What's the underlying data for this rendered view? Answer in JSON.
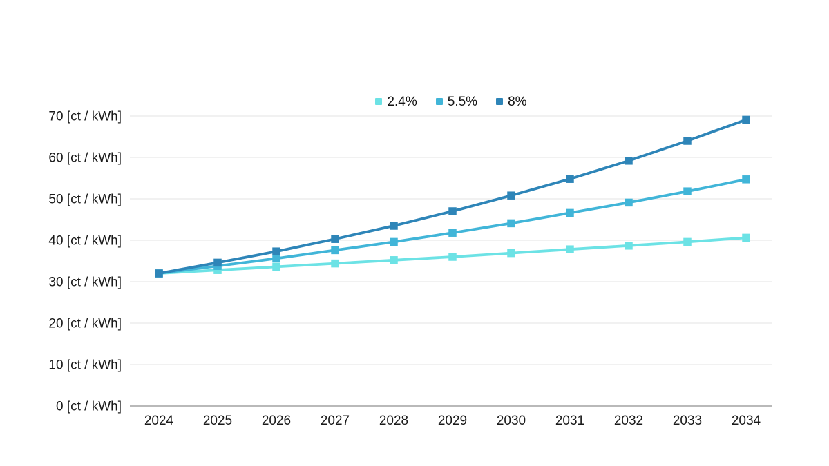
{
  "chart_data": {
    "type": "line",
    "title": "",
    "x": [
      2024,
      2025,
      2026,
      2027,
      2028,
      2029,
      2030,
      2031,
      2032,
      2033,
      2034
    ],
    "series": [
      {
        "name": "2.4%",
        "color": "#6ce2e5",
        "values": [
          32.0,
          32.8,
          33.6,
          34.4,
          35.2,
          36.0,
          36.9,
          37.8,
          38.7,
          39.6,
          40.6
        ]
      },
      {
        "name": "5.5%",
        "color": "#41b5d8",
        "values": [
          32.0,
          33.8,
          35.6,
          37.6,
          39.6,
          41.8,
          44.1,
          46.6,
          49.1,
          51.8,
          54.7
        ]
      },
      {
        "name": "8%",
        "color": "#2e85b8",
        "values": [
          32.0,
          34.6,
          37.3,
          40.3,
          43.5,
          47.0,
          50.8,
          54.8,
          59.2,
          64.0,
          69.1
        ]
      }
    ],
    "y_ticks": [
      0,
      10,
      20,
      30,
      40,
      50,
      60,
      70
    ],
    "ylim": [
      0,
      70
    ],
    "ylabel_format": "{v} [ct / kWh]",
    "xlabel": "",
    "ylabel": "",
    "grid": true,
    "legend_position": "top-center"
  },
  "colors": {
    "gridline": "#e3e3e3",
    "axis_line": "#8f8f8f",
    "tick_text": "#1a1a1a",
    "background": "#ffffff"
  }
}
